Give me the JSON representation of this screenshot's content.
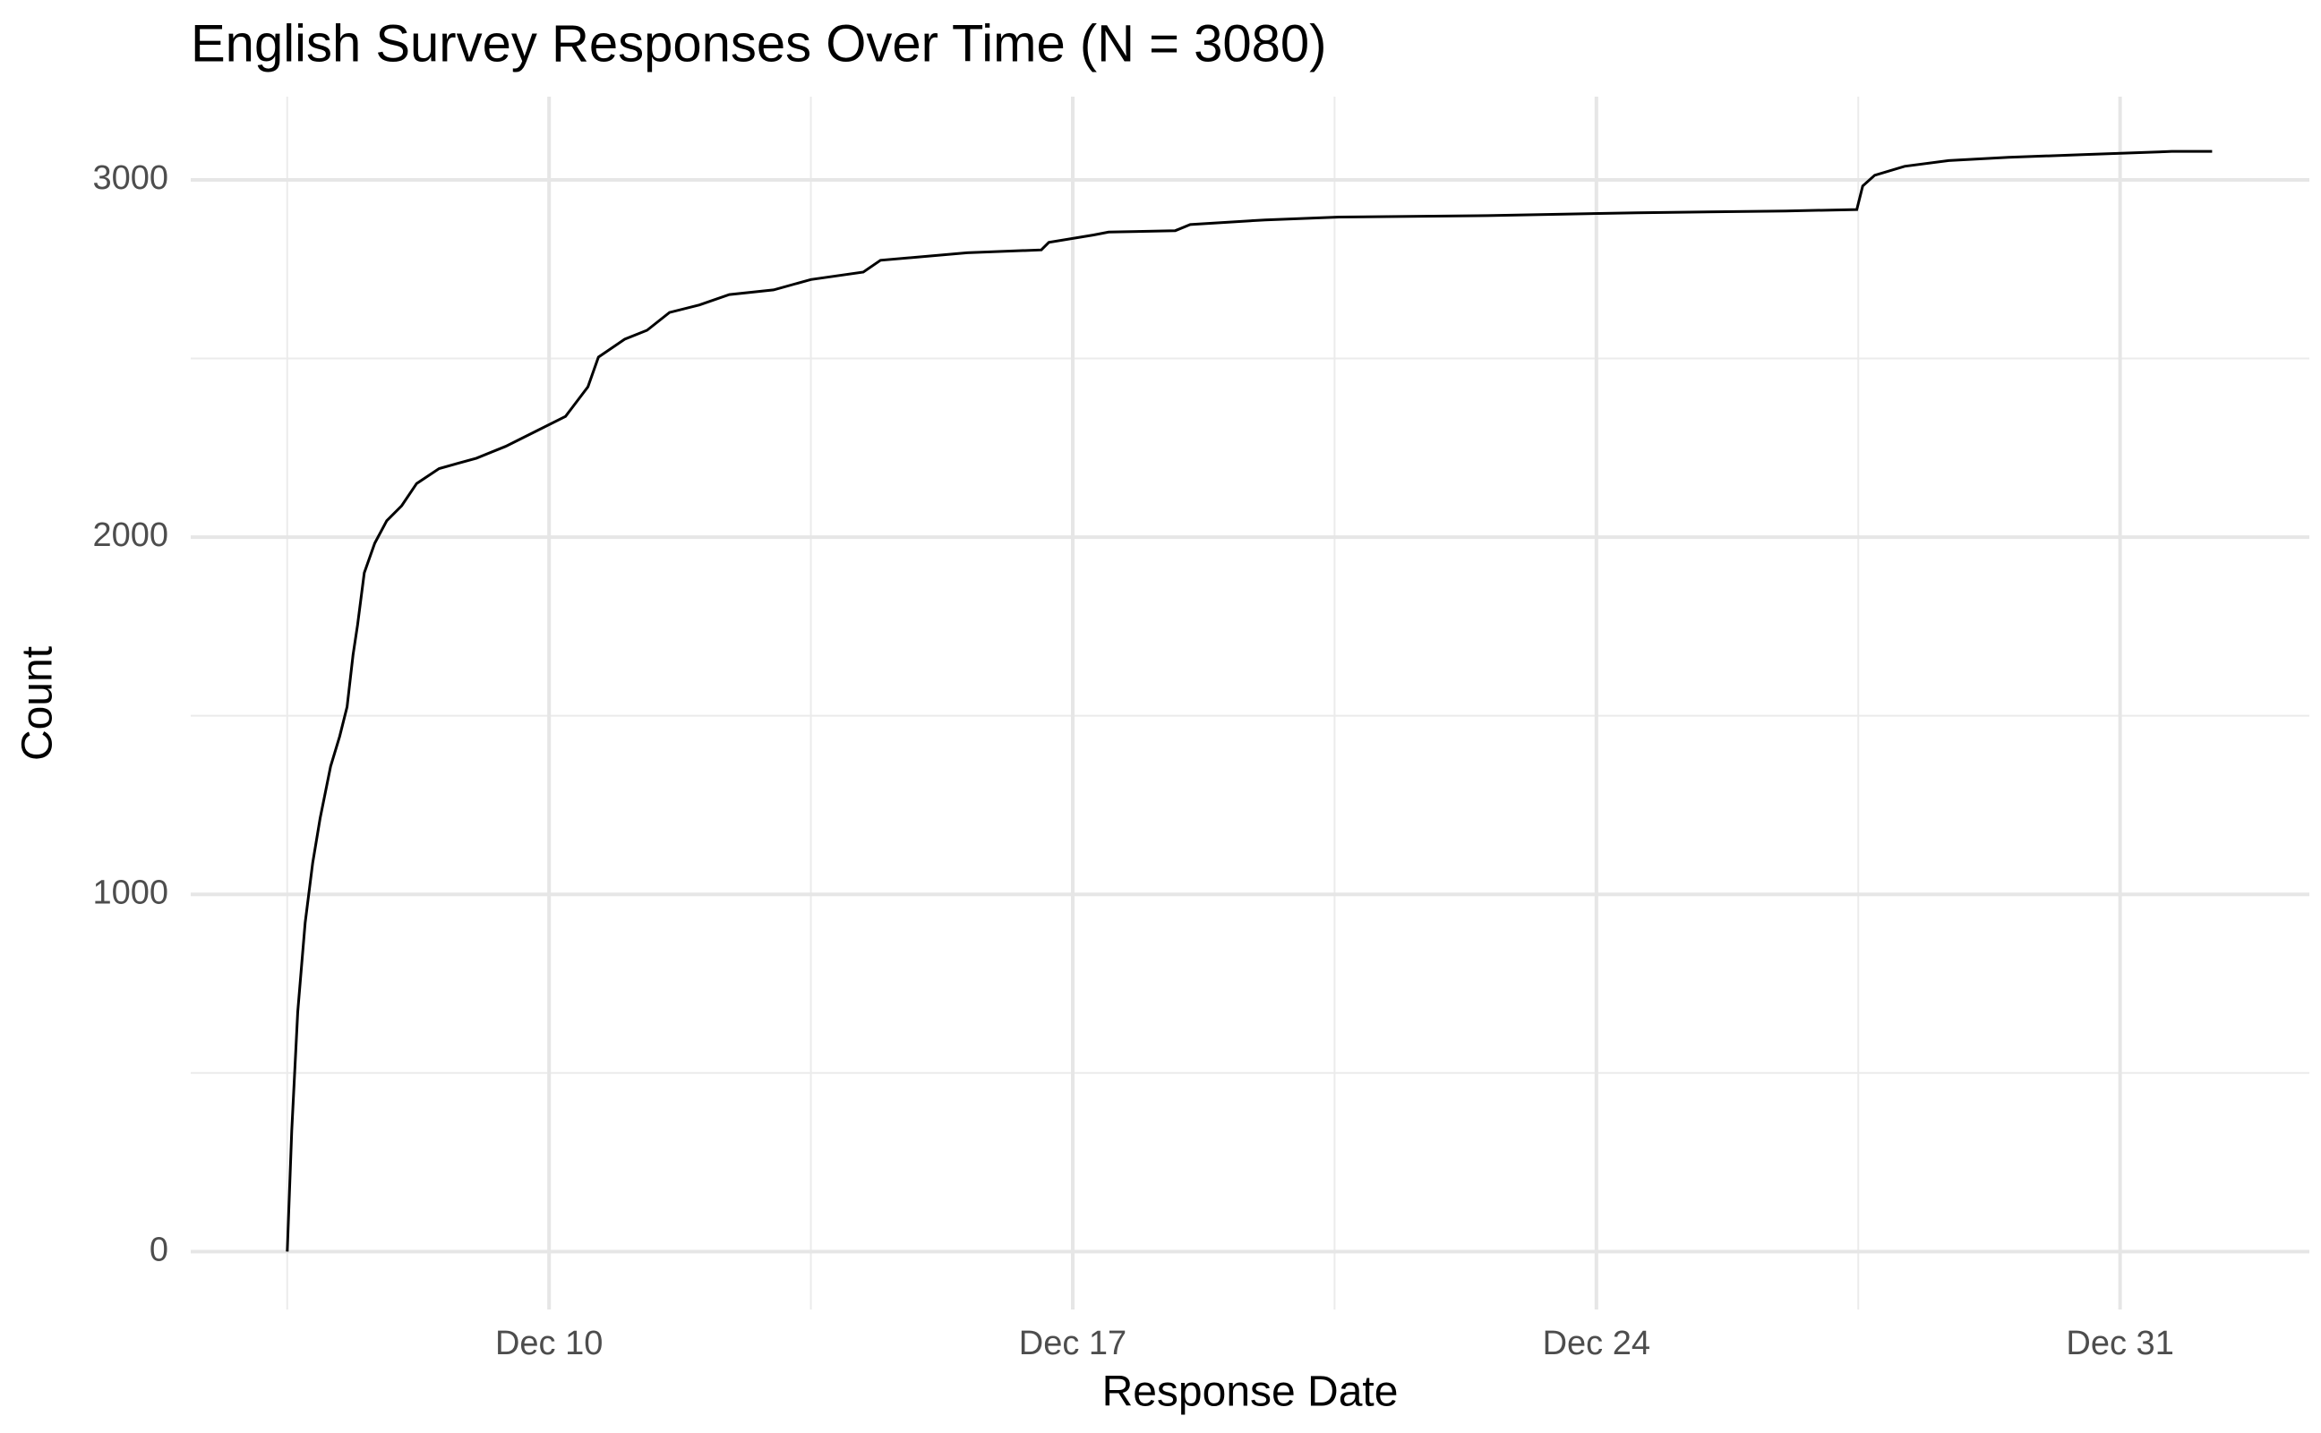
{
  "chart_data": {
    "type": "line",
    "title": "English Survey Responses Over Time (N = 3080)",
    "x_label": "Response Date",
    "y_label": "Count",
    "x": [
      6.5,
      6.56,
      6.64,
      6.74,
      6.84,
      6.94,
      7.08,
      7.2,
      7.3,
      7.38,
      7.44,
      7.53,
      7.67,
      7.83,
      8.03,
      8.23,
      8.53,
      9.03,
      9.42,
      9.82,
      10.22,
      10.52,
      10.66,
      11.01,
      11.31,
      11.61,
      12.01,
      12.41,
      13.0,
      13.5,
      14.2,
      14.43,
      15.59,
      16.58,
      16.68,
      17.28,
      17.48,
      18.37,
      18.57,
      19.57,
      20.56,
      22.55,
      24.54,
      26.53,
      27.48,
      27.56,
      27.72,
      28.12,
      28.71,
      29.51,
      30.5,
      31.59,
      31.69,
      32.23
    ],
    "series": [
      {
        "color": "#000000",
        "values": [
          0,
          338,
          671,
          921,
          1088,
          1213,
          1358,
          1442,
          1525,
          1671,
          1754,
          1900,
          1983,
          2046,
          2088,
          2150,
          2192,
          2221,
          2254,
          2296,
          2338,
          2421,
          2504,
          2554,
          2579,
          2629,
          2650,
          2679,
          2692,
          2721,
          2742,
          2775,
          2796,
          2804,
          2825,
          2846,
          2854,
          2858,
          2875,
          2888,
          2896,
          2900,
          2908,
          2913,
          2917,
          2983,
          3013,
          3038,
          3054,
          3063,
          3071,
          3079,
          3080,
          3080
        ]
      }
    ],
    "xlim": [
      5.21,
      33.53
    ],
    "xticks": [
      {
        "value": 10,
        "label": "Dec 10"
      },
      {
        "value": 17,
        "label": "Dec 17"
      },
      {
        "value": 24,
        "label": "Dec 24"
      },
      {
        "value": 31,
        "label": "Dec 31"
      }
    ],
    "xminorticks": [
      6.5,
      13.5,
      20.5,
      27.5
    ],
    "ylim": [
      -162,
      3233
    ],
    "yticks": [
      0,
      1000,
      2000,
      3000
    ],
    "yminorticks": [
      500,
      1500,
      2500
    ],
    "grid": true
  }
}
